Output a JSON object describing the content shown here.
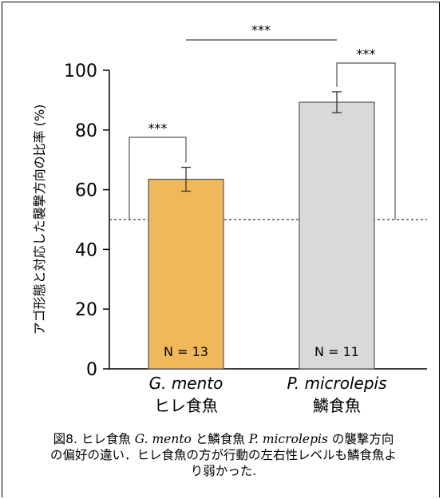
{
  "chart_data": {
    "type": "bar",
    "ylabel": "アゴ形態と対応した襲撃方向の比率 (%)",
    "ylim": [
      0,
      100
    ],
    "yticks": [
      0,
      20,
      40,
      60,
      80,
      100
    ],
    "categories": [
      {
        "species": "G. mento",
        "japanese": "ヒレ食魚"
      },
      {
        "species": "P. microlepis",
        "japanese": "鱗食魚"
      }
    ],
    "values": [
      63.5,
      89.3
    ],
    "error": [
      4,
      3.5
    ],
    "n_labels": [
      "N = 13",
      "N = 11"
    ],
    "reference_line": 50,
    "significance": [
      "***",
      "***",
      "***"
    ],
    "colors": [
      "#F0B85A",
      "#D9D9D9"
    ]
  },
  "caption": {
    "lead": "図8. ヒレ食魚 ",
    "species1": "G. mento",
    "mid": " と鱗食魚 ",
    "species2": "P. microlepis",
    "tail": " の襲撃方向の偏好の違い．ヒレ食魚の方が行動の左右性レベルも鱗食魚より弱かった."
  }
}
